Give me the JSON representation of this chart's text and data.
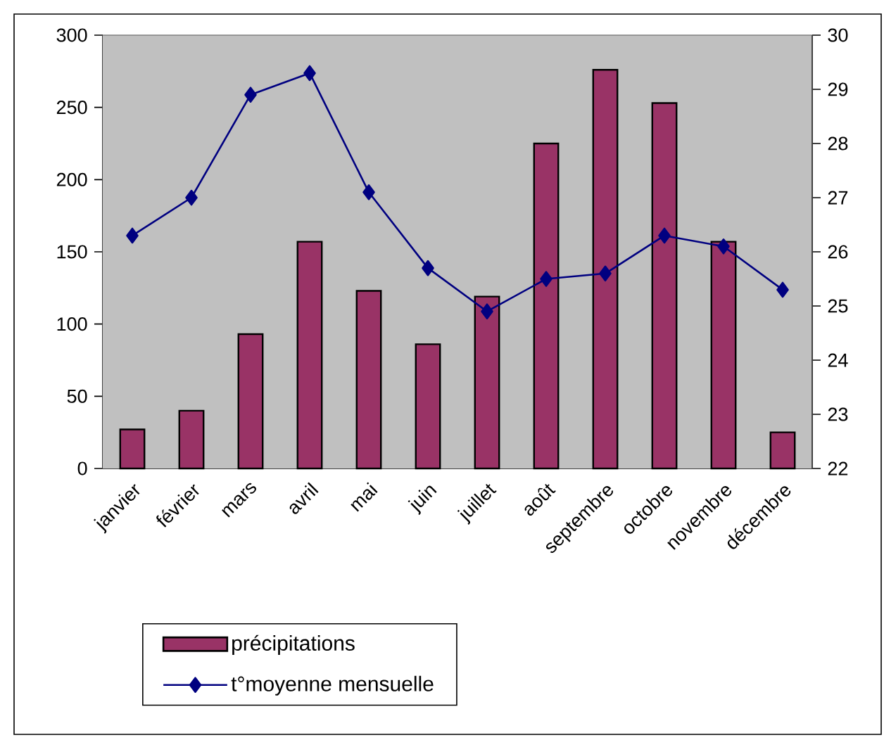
{
  "chart_data": {
    "type": "bar",
    "categories": [
      "janvier",
      "février",
      "mars",
      "avril",
      "mai",
      "juin",
      "juillet",
      "août",
      "septembre",
      "octobre",
      "novembre",
      "décembre"
    ],
    "series": [
      {
        "name": "précipitations",
        "color": "#993366",
        "values": [
          27,
          40,
          93,
          157,
          123,
          86,
          119,
          225,
          276,
          253,
          157,
          25
        ]
      },
      {
        "name": "t°moyenne mensuelle",
        "type": "line",
        "axis": "y2",
        "marker": "diamond",
        "color": "#000080",
        "values": [
          26.3,
          27.0,
          28.9,
          29.3,
          27.1,
          25.7,
          24.9,
          25.5,
          25.6,
          26.3,
          26.1,
          25.3
        ]
      }
    ],
    "ylim": [
      0,
      300
    ],
    "yticks": [
      0,
      50,
      100,
      150,
      200,
      250,
      300
    ],
    "y2lim": [
      22,
      30
    ],
    "y2ticks": [
      22,
      23,
      24,
      25,
      26,
      27,
      28,
      29,
      30
    ],
    "legend": "bottom"
  }
}
